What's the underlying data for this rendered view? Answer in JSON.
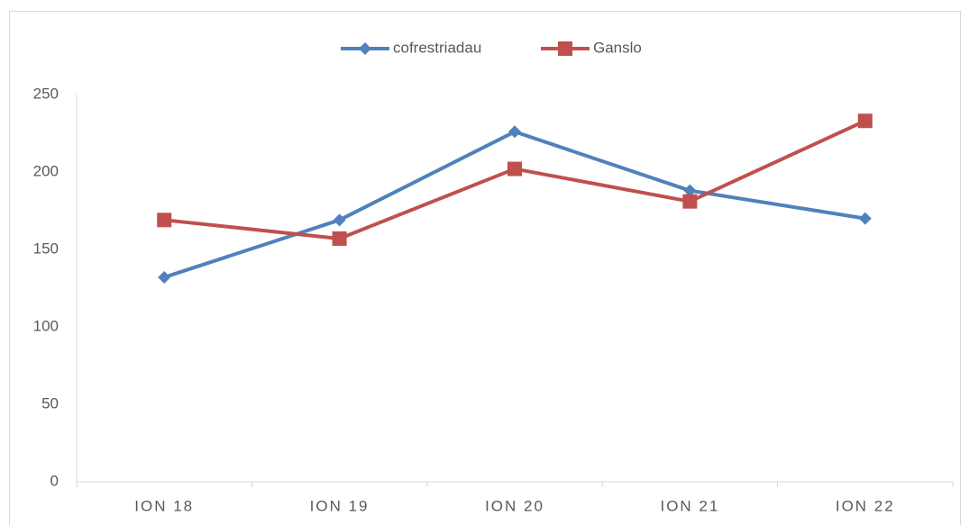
{
  "chart_data": {
    "type": "line",
    "categories": [
      "ION 18",
      "ION 19",
      "ION 20",
      "ION 21",
      "ION 22"
    ],
    "series": [
      {
        "name": "cofrestriadau",
        "color": "#4f81bd",
        "marker": "diamond",
        "values": [
          132,
          169,
          226,
          188,
          170
        ]
      },
      {
        "name": "Ganslo",
        "color": "#c0504d",
        "marker": "square",
        "values": [
          169,
          157,
          202,
          181,
          233
        ]
      }
    ],
    "ylim": [
      0,
      250
    ],
    "yticks": [
      0,
      50,
      100,
      150,
      200,
      250
    ],
    "grid": false,
    "legend": "top"
  }
}
